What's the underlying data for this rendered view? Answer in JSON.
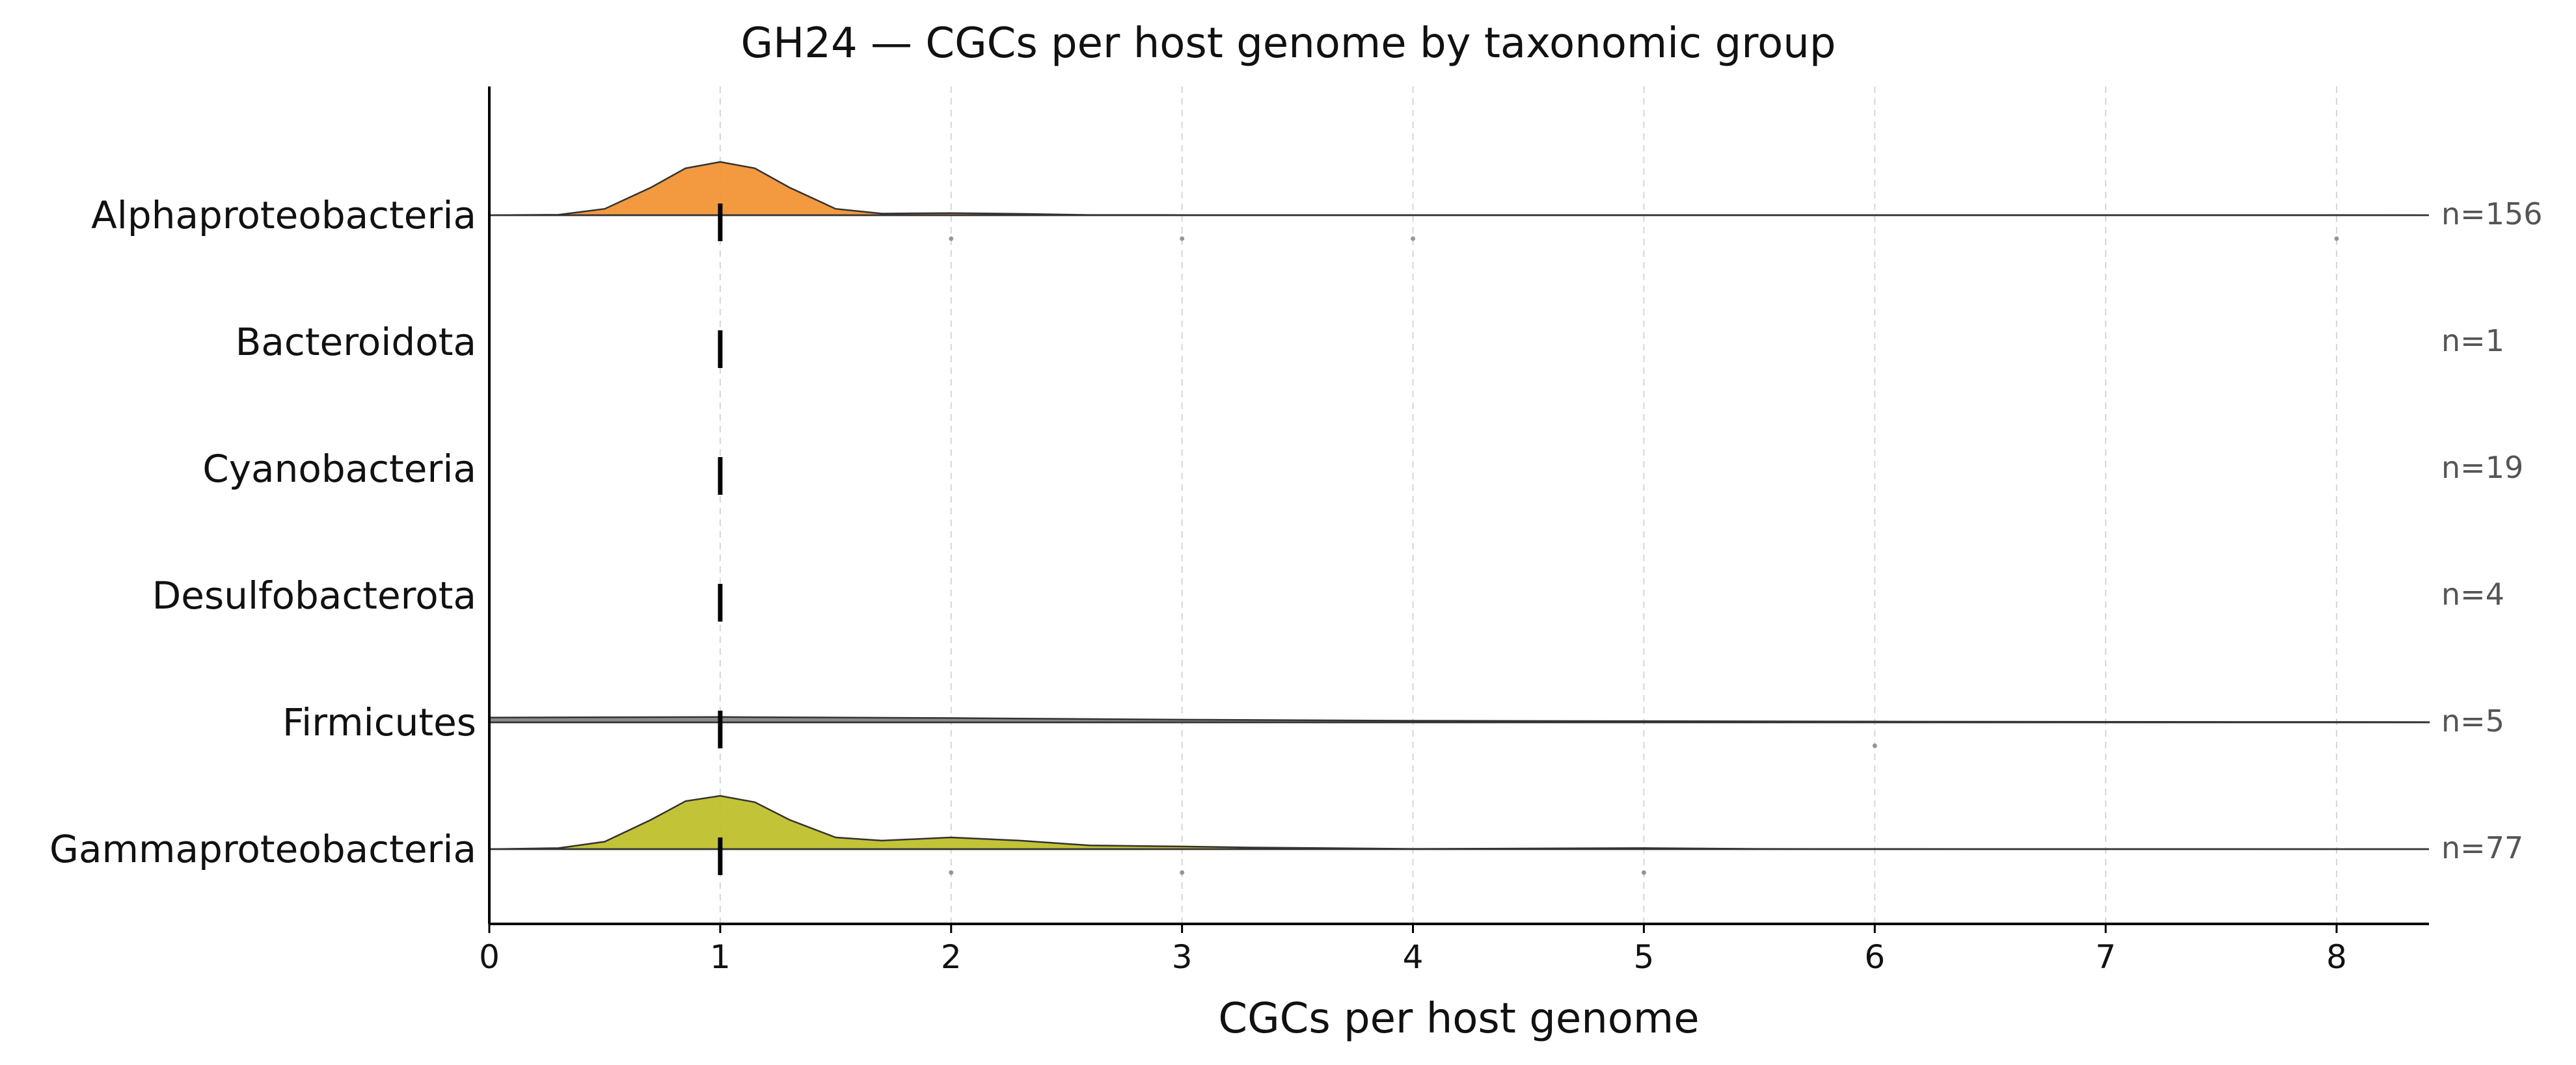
{
  "chart_data": {
    "type": "ridgeline",
    "title": "GH24 — CGCs per host genome by taxonomic group",
    "xlabel": "CGCs per host genome",
    "xlim": [
      0,
      8.4
    ],
    "xticks": [
      "0",
      "1",
      "2",
      "3",
      "4",
      "5",
      "6",
      "7",
      "8"
    ],
    "grid": "vertical dashed",
    "categories": [
      {
        "name": "Alphaproteobacteria",
        "n_label": "n=156",
        "median": 1,
        "color": "#f28e2b",
        "density": [
          [
            0,
            0
          ],
          [
            0.3,
            0.01
          ],
          [
            0.5,
            0.12
          ],
          [
            0.7,
            0.52
          ],
          [
            0.85,
            0.88
          ],
          [
            1.0,
            1.0
          ],
          [
            1.15,
            0.88
          ],
          [
            1.3,
            0.52
          ],
          [
            1.5,
            0.12
          ],
          [
            1.7,
            0.03
          ],
          [
            2.0,
            0.04
          ],
          [
            2.3,
            0.025
          ],
          [
            2.6,
            0.005
          ],
          [
            3.0,
            0.004
          ],
          [
            4.0,
            0.004
          ],
          [
            8.0,
            0.002
          ],
          [
            8.4,
            0
          ]
        ],
        "outliers": [
          2,
          3,
          4,
          8
        ]
      },
      {
        "name": "Bacteroidota",
        "n_label": "n=1",
        "median": 1,
        "color": "#4e79a7",
        "density": [],
        "outliers": []
      },
      {
        "name": "Cyanobacteria",
        "n_label": "n=19",
        "median": 1,
        "color": "#59a14f",
        "density": [],
        "outliers": []
      },
      {
        "name": "Desulfobacterota",
        "n_label": "n=4",
        "median": 1,
        "color": "#b07aa1",
        "density": [],
        "outliers": []
      },
      {
        "name": "Firmicutes",
        "n_label": "n=5",
        "median": 1,
        "color": "#7f7f7f",
        "density": [
          [
            0,
            0.09
          ],
          [
            1.0,
            0.1
          ],
          [
            2.0,
            0.08
          ],
          [
            3.0,
            0.05
          ],
          [
            4.0,
            0.03
          ],
          [
            6.0,
            0.015
          ],
          [
            8.4,
            0.005
          ]
        ],
        "outliers": [
          6
        ]
      },
      {
        "name": "Gammaproteobacteria",
        "n_label": "n=77",
        "median": 1,
        "color": "#bcbd22",
        "density": [
          [
            0,
            0
          ],
          [
            0.3,
            0.02
          ],
          [
            0.5,
            0.14
          ],
          [
            0.7,
            0.55
          ],
          [
            0.85,
            0.9
          ],
          [
            1.0,
            1.0
          ],
          [
            1.15,
            0.88
          ],
          [
            1.3,
            0.55
          ],
          [
            1.5,
            0.22
          ],
          [
            1.7,
            0.16
          ],
          [
            2.0,
            0.22
          ],
          [
            2.3,
            0.16
          ],
          [
            2.6,
            0.07
          ],
          [
            3.0,
            0.05
          ],
          [
            3.3,
            0.03
          ],
          [
            4.0,
            0.005
          ],
          [
            5.0,
            0.02
          ],
          [
            5.5,
            0.005
          ],
          [
            6.0,
            0.003
          ],
          [
            8.4,
            0
          ]
        ],
        "outliers": [
          2,
          3,
          5
        ]
      }
    ]
  }
}
